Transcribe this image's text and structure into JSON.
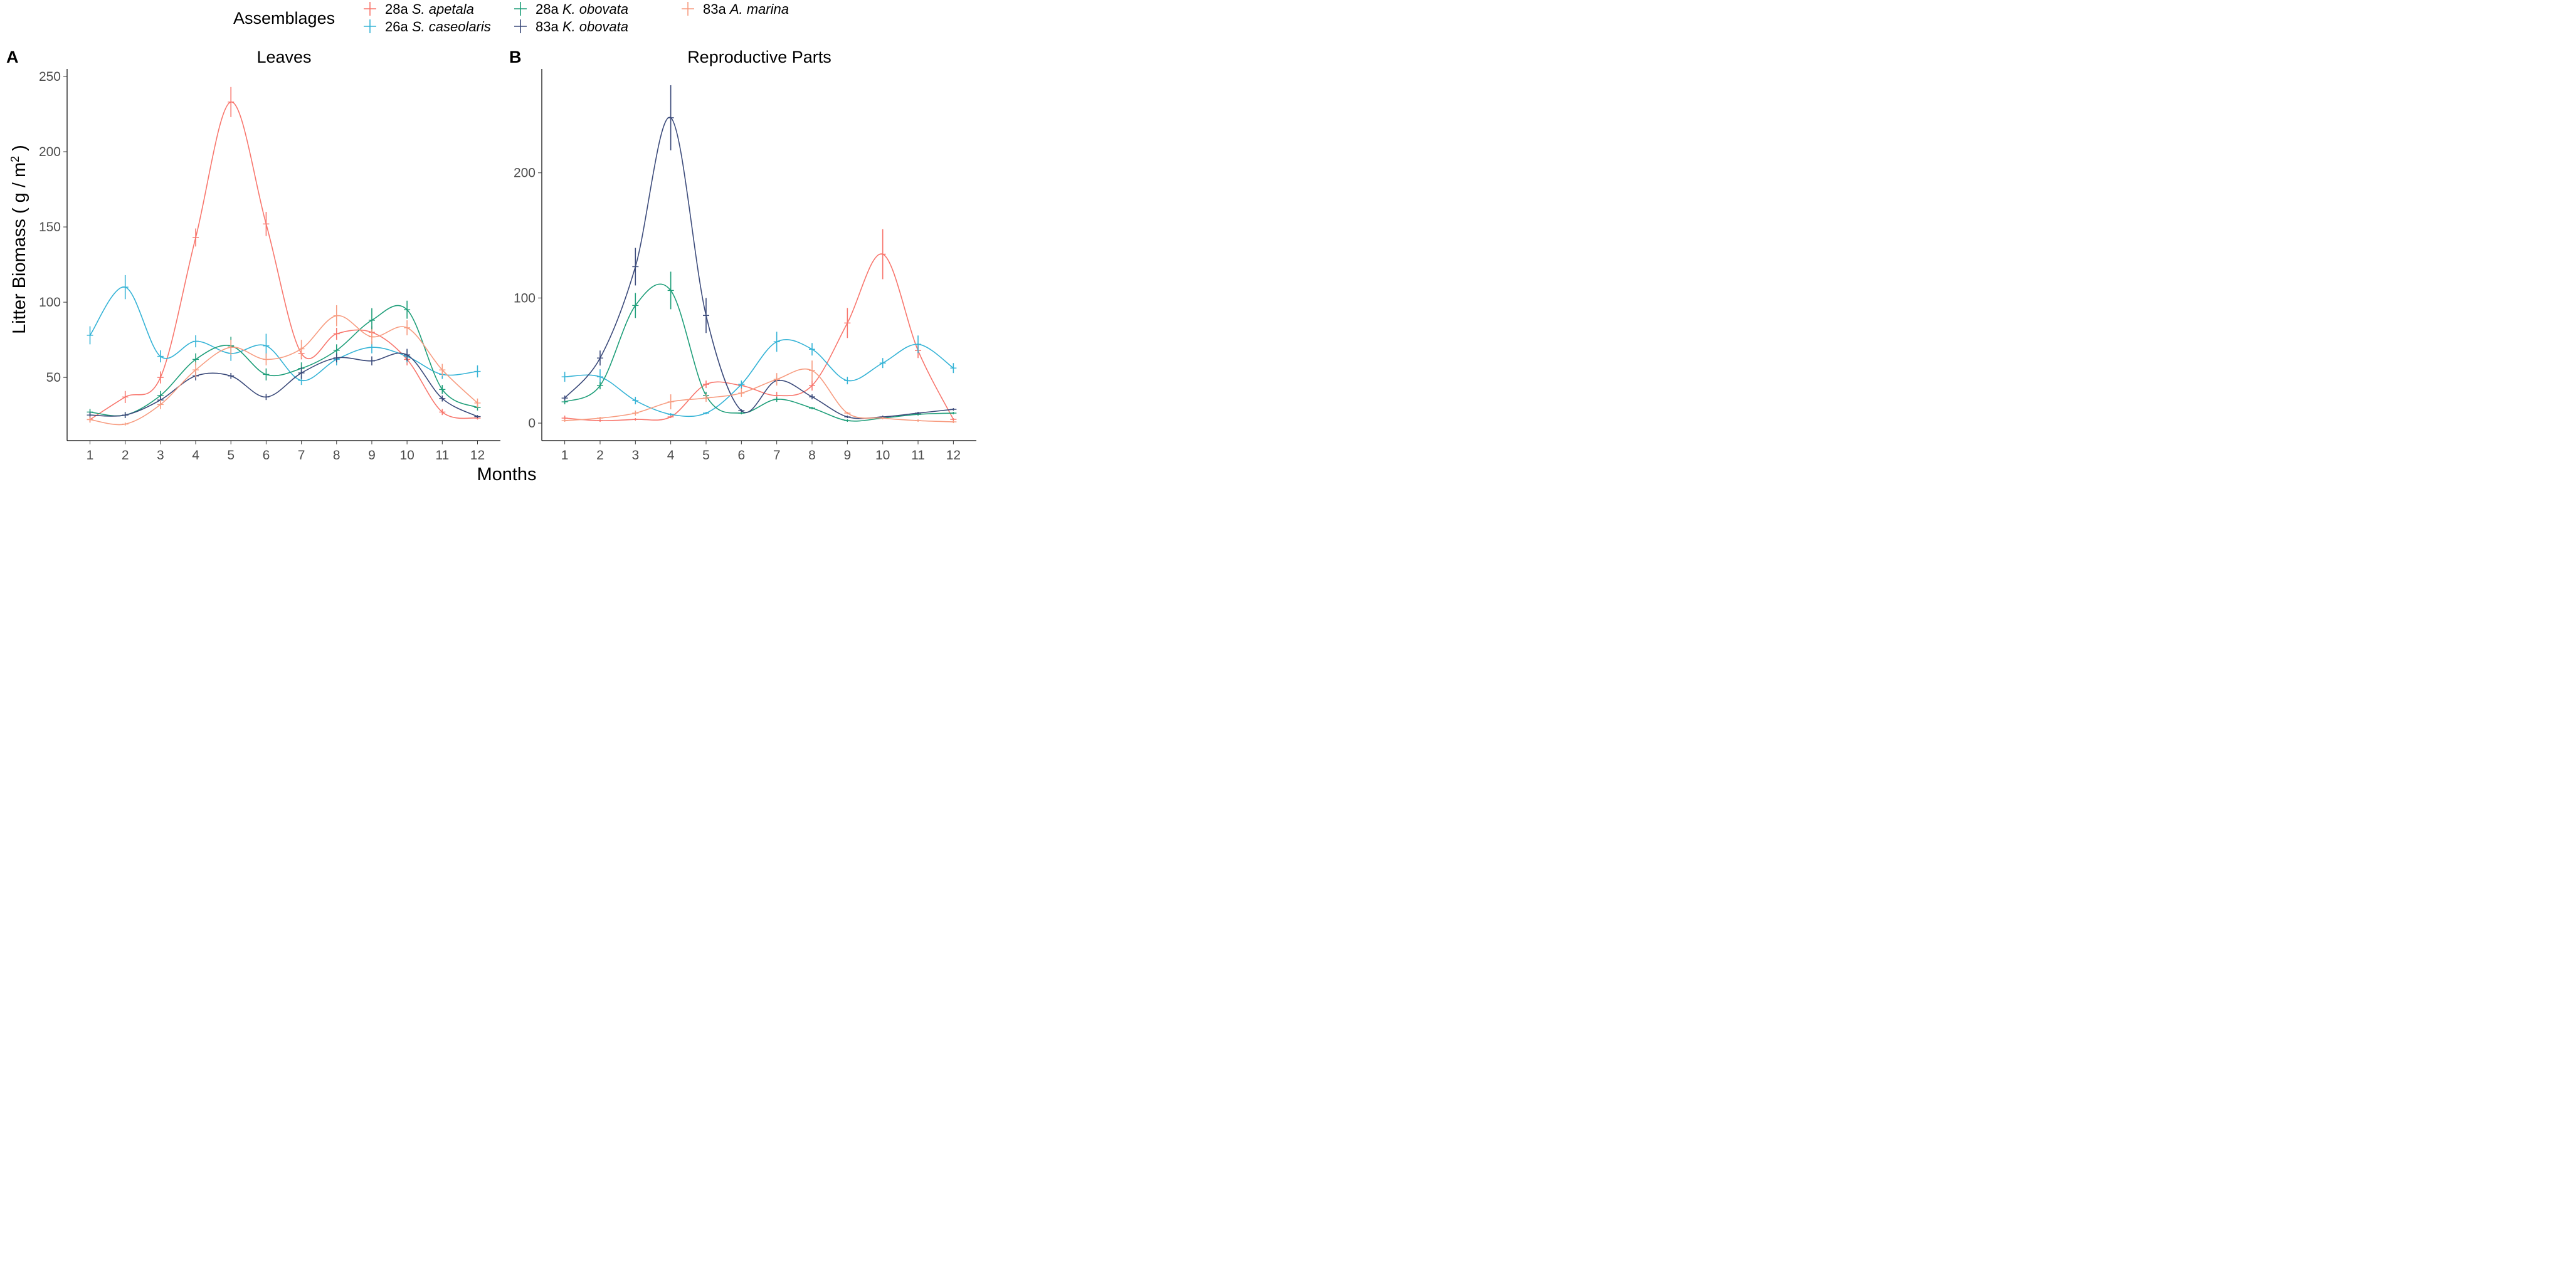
{
  "legend": {
    "title": "Assemblages",
    "entries": [
      {
        "label": "28a S. apetala",
        "site": "28a",
        "species": "S. apetala",
        "color": "#F8766D"
      },
      {
        "label": "26a S. caseolaris",
        "site": "26a",
        "species": "S. caseolaris",
        "color": "#35B3D6"
      },
      {
        "label": "28a K. obovata",
        "site": "28a",
        "species": "K. obovata",
        "color": "#1E9E79"
      },
      {
        "label": "83a K. obovata",
        "site": "83a",
        "species": "K. obovata",
        "color": "#3B4A7A"
      },
      {
        "label": "83a A. marina",
        "site": "83a",
        "species": "A. marina",
        "color": "#F79C80"
      }
    ]
  },
  "xlabel": "Months",
  "ylabel": "Litter Biomass ( g/m² )",
  "ylabel_parts": {
    "main": "Litter Biomass ( g / m",
    "sup": "2",
    "end": " )"
  },
  "chart_data": [
    {
      "type": "line",
      "panel": "A",
      "title": "Leaves",
      "xlabel": "Months",
      "ylabel": "Litter Biomass ( g/m² )",
      "x": [
        1,
        2,
        3,
        4,
        5,
        6,
        7,
        8,
        9,
        10,
        11,
        12
      ],
      "xlim": [
        0.35,
        12.65
      ],
      "ylim": [
        8,
        255
      ],
      "yticks": [
        50,
        100,
        150,
        200,
        250
      ],
      "series": [
        {
          "name": "28a S. apetala",
          "color": "#F8766D",
          "values": [
            22,
            37,
            50,
            143,
            233,
            152,
            66,
            79,
            80,
            62,
            27,
            23
          ],
          "err": [
            2,
            4,
            4,
            6,
            10,
            8,
            4,
            4,
            4,
            4,
            2,
            1
          ]
        },
        {
          "name": "26a S. caseolaris",
          "color": "#35B3D6",
          "values": [
            78,
            110,
            64,
            74,
            66,
            71,
            48,
            62,
            70,
            64,
            52,
            54
          ],
          "err": [
            6,
            8,
            4,
            4,
            5,
            8,
            3,
            4,
            4,
            4,
            3,
            4
          ]
        },
        {
          "name": "28a K. obovata",
          "color": "#1E9E79",
          "values": [
            27,
            25,
            38,
            62,
            71,
            52,
            56,
            68,
            88,
            95,
            42,
            30
          ],
          "err": [
            2,
            2,
            3,
            4,
            6,
            4,
            4,
            4,
            8,
            6,
            3,
            2
          ]
        },
        {
          "name": "83a K. obovata",
          "color": "#3B4A7A",
          "values": [
            25,
            25,
            35,
            51,
            51,
            37,
            53,
            63,
            61,
            65,
            36,
            24
          ],
          "err": [
            2,
            2,
            3,
            3,
            2,
            2,
            4,
            3,
            3,
            4,
            2,
            1
          ]
        },
        {
          "name": "83a A. marina",
          "color": "#F79C80",
          "values": [
            22,
            19,
            32,
            55,
            70,
            62,
            69,
            91,
            77,
            83,
            55,
            33
          ],
          "err": [
            2,
            1,
            3,
            5,
            5,
            4,
            6,
            7,
            5,
            5,
            4,
            3
          ]
        }
      ]
    },
    {
      "type": "line",
      "panel": "B",
      "title": "Reproductive Parts",
      "xlabel": "Months",
      "ylabel": "",
      "x": [
        1,
        2,
        3,
        4,
        5,
        6,
        7,
        8,
        9,
        10,
        11,
        12
      ],
      "xlim": [
        0.35,
        12.65
      ],
      "ylim": [
        -14,
        283
      ],
      "yticks": [
        0,
        100,
        200
      ],
      "series": [
        {
          "name": "28a S. apetala",
          "color": "#F8766D",
          "values": [
            4,
            2,
            3,
            5,
            31,
            30,
            22,
            30,
            80,
            135,
            58,
            3
          ],
          "err": [
            2,
            1,
            1,
            1,
            3,
            3,
            3,
            4,
            12,
            20,
            6,
            1
          ]
        },
        {
          "name": "26a S. caseolaris",
          "color": "#35B3D6",
          "values": [
            37,
            37,
            18,
            7,
            8,
            31,
            65,
            59,
            34,
            48,
            63,
            44
          ],
          "err": [
            4,
            6,
            3,
            1,
            1,
            3,
            8,
            5,
            3,
            4,
            7,
            4
          ]
        },
        {
          "name": "28a K. obovata",
          "color": "#1E9E79",
          "values": [
            17,
            30,
            94,
            106,
            22,
            8,
            19,
            12,
            2,
            4,
            7,
            8
          ],
          "err": [
            2,
            3,
            10,
            15,
            3,
            1,
            2,
            1,
            1,
            1,
            1,
            1
          ]
        },
        {
          "name": "83a K. obovata",
          "color": "#3B4A7A",
          "values": [
            20,
            52,
            125,
            244,
            86,
            10,
            34,
            21,
            5,
            5,
            8,
            11
          ],
          "err": [
            2,
            6,
            15,
            26,
            14,
            1,
            3,
            2,
            1,
            1,
            1,
            1
          ]
        },
        {
          "name": "83a A. marina",
          "color": "#F79C80",
          "values": [
            2,
            4,
            8,
            17,
            20,
            24,
            35,
            42,
            8,
            4,
            2,
            1
          ],
          "err": [
            1,
            1,
            2,
            6,
            3,
            3,
            5,
            8,
            1,
            1,
            1,
            1
          ]
        }
      ]
    }
  ]
}
